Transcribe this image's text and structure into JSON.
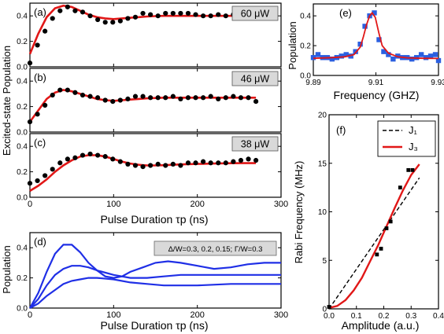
{
  "chart_data": [
    {
      "panel": "(a)",
      "type": "scatter",
      "power_label": "60 μW",
      "xlim": [
        0,
        300
      ],
      "ylim": [
        0,
        0.5
      ],
      "xticks": [
        0,
        100,
        200,
        300
      ],
      "yticks": [
        "0.0",
        "0.2",
        "0.4"
      ],
      "points": [
        [
          0,
          0.03
        ],
        [
          9,
          0.17
        ],
        [
          18,
          0.28
        ],
        [
          27,
          0.38
        ],
        [
          36,
          0.44
        ],
        [
          45,
          0.47
        ],
        [
          54,
          0.44
        ],
        [
          63,
          0.43
        ],
        [
          72,
          0.4
        ],
        [
          81,
          0.37
        ],
        [
          90,
          0.35
        ],
        [
          99,
          0.35
        ],
        [
          108,
          0.36
        ],
        [
          117,
          0.38
        ],
        [
          126,
          0.39
        ],
        [
          135,
          0.42
        ],
        [
          144,
          0.41
        ],
        [
          153,
          0.4
        ],
        [
          162,
          0.42
        ],
        [
          171,
          0.42
        ],
        [
          180,
          0.42
        ],
        [
          189,
          0.42
        ],
        [
          198,
          0.41
        ],
        [
          207,
          0.4
        ],
        [
          216,
          0.4
        ],
        [
          225,
          0.41
        ],
        [
          234,
          0.4
        ],
        [
          243,
          0.41
        ],
        [
          252,
          0.41
        ],
        [
          261,
          0.4
        ],
        [
          270,
          0.39
        ]
      ],
      "fit": [
        [
          0,
          0.1
        ],
        [
          10,
          0.26
        ],
        [
          20,
          0.39
        ],
        [
          30,
          0.46
        ],
        [
          40,
          0.48
        ],
        [
          50,
          0.47
        ],
        [
          60,
          0.44
        ],
        [
          70,
          0.41
        ],
        [
          80,
          0.39
        ],
        [
          90,
          0.38
        ],
        [
          100,
          0.375
        ],
        [
          110,
          0.38
        ],
        [
          120,
          0.385
        ],
        [
          130,
          0.39
        ],
        [
          140,
          0.395
        ],
        [
          150,
          0.398
        ],
        [
          160,
          0.4
        ],
        [
          180,
          0.4
        ],
        [
          200,
          0.4
        ],
        [
          220,
          0.4
        ],
        [
          240,
          0.4
        ],
        [
          255,
          0.4
        ],
        [
          270,
          0.4
        ]
      ]
    },
    {
      "panel": "(b)",
      "type": "scatter",
      "power_label": "46 μW",
      "xlim": [
        0,
        300
      ],
      "ylim": [
        0,
        0.5
      ],
      "xticks": [
        0,
        100,
        200,
        300
      ],
      "yticks": [
        "0.0",
        "0.2",
        "0.4"
      ],
      "points": [
        [
          0,
          0.08
        ],
        [
          9,
          0.14
        ],
        [
          18,
          0.21
        ],
        [
          27,
          0.29
        ],
        [
          36,
          0.33
        ],
        [
          45,
          0.33
        ],
        [
          54,
          0.31
        ],
        [
          63,
          0.29
        ],
        [
          72,
          0.28
        ],
        [
          81,
          0.27
        ],
        [
          90,
          0.25
        ],
        [
          99,
          0.24
        ],
        [
          108,
          0.25
        ],
        [
          117,
          0.26
        ],
        [
          126,
          0.28
        ],
        [
          135,
          0.28
        ],
        [
          144,
          0.27
        ],
        [
          153,
          0.27
        ],
        [
          162,
          0.27
        ],
        [
          171,
          0.28
        ],
        [
          180,
          0.26
        ],
        [
          189,
          0.27
        ],
        [
          198,
          0.27
        ],
        [
          207,
          0.27
        ],
        [
          216,
          0.28
        ],
        [
          225,
          0.26
        ],
        [
          234,
          0.27
        ],
        [
          243,
          0.28
        ],
        [
          252,
          0.27
        ],
        [
          261,
          0.27
        ],
        [
          270,
          0.24
        ]
      ],
      "fit": [
        [
          0,
          0.08
        ],
        [
          10,
          0.17
        ],
        [
          20,
          0.26
        ],
        [
          30,
          0.31
        ],
        [
          40,
          0.33
        ],
        [
          50,
          0.32
        ],
        [
          60,
          0.3
        ],
        [
          70,
          0.28
        ],
        [
          80,
          0.26
        ],
        [
          90,
          0.25
        ],
        [
          100,
          0.245
        ],
        [
          110,
          0.25
        ],
        [
          120,
          0.255
        ],
        [
          130,
          0.26
        ],
        [
          140,
          0.265
        ],
        [
          160,
          0.27
        ],
        [
          180,
          0.27
        ],
        [
          200,
          0.27
        ],
        [
          220,
          0.27
        ],
        [
          240,
          0.27
        ],
        [
          255,
          0.27
        ],
        [
          270,
          0.27
        ]
      ]
    },
    {
      "panel": "(c)",
      "type": "scatter",
      "power_label": "38 μW",
      "xlim": [
        0,
        300
      ],
      "ylim": [
        0,
        0.5
      ],
      "xticks": [
        0,
        100,
        200,
        300
      ],
      "yticks": [
        "0.0",
        "0.2",
        "0.4"
      ],
      "points": [
        [
          0,
          0.11
        ],
        [
          9,
          0.13
        ],
        [
          18,
          0.17
        ],
        [
          27,
          0.22
        ],
        [
          36,
          0.27
        ],
        [
          45,
          0.3
        ],
        [
          54,
          0.31
        ],
        [
          63,
          0.33
        ],
        [
          72,
          0.34
        ],
        [
          81,
          0.33
        ],
        [
          90,
          0.32
        ],
        [
          99,
          0.3
        ],
        [
          108,
          0.28
        ],
        [
          117,
          0.26
        ],
        [
          126,
          0.25
        ],
        [
          135,
          0.24
        ],
        [
          144,
          0.25
        ],
        [
          153,
          0.26
        ],
        [
          162,
          0.25
        ],
        [
          171,
          0.26
        ],
        [
          180,
          0.25
        ],
        [
          189,
          0.27
        ],
        [
          198,
          0.27
        ],
        [
          207,
          0.28
        ],
        [
          216,
          0.27
        ],
        [
          225,
          0.27
        ],
        [
          234,
          0.27
        ],
        [
          243,
          0.28
        ],
        [
          252,
          0.29
        ],
        [
          261,
          0.3
        ],
        [
          270,
          0.29
        ]
      ],
      "fit": [
        [
          0,
          0.05
        ],
        [
          10,
          0.09
        ],
        [
          20,
          0.14
        ],
        [
          30,
          0.2
        ],
        [
          40,
          0.25
        ],
        [
          50,
          0.29
        ],
        [
          60,
          0.32
        ],
        [
          70,
          0.33
        ],
        [
          80,
          0.33
        ],
        [
          90,
          0.32
        ],
        [
          100,
          0.3
        ],
        [
          110,
          0.28
        ],
        [
          120,
          0.265
        ],
        [
          130,
          0.255
        ],
        [
          140,
          0.25
        ],
        [
          150,
          0.25
        ],
        [
          160,
          0.252
        ],
        [
          180,
          0.258
        ],
        [
          200,
          0.262
        ],
        [
          220,
          0.265
        ],
        [
          240,
          0.267
        ],
        [
          255,
          0.268
        ],
        [
          270,
          0.268
        ]
      ]
    },
    {
      "panel": "(d)",
      "type": "line",
      "xlabel": "Pulse Duration τp (ns)",
      "ylabel": "Population",
      "annotation": "Δ/W=0.3, 0.2, 0.15; Γ/W=0.3",
      "xlim": [
        0,
        300
      ],
      "ylim": [
        0,
        0.5
      ],
      "xticks": [
        0,
        100,
        200,
        300
      ],
      "yticks": [
        "0.0",
        "0.2",
        "0.4"
      ],
      "series": [
        {
          "values": [
            [
              0,
              0
            ],
            [
              10,
              0.1
            ],
            [
              20,
              0.24
            ],
            [
              30,
              0.36
            ],
            [
              40,
              0.42
            ],
            [
              50,
              0.42
            ],
            [
              60,
              0.37
            ],
            [
              70,
              0.3
            ],
            [
              80,
              0.25
            ],
            [
              90,
              0.21
            ],
            [
              100,
              0.2
            ],
            [
              110,
              0.21
            ],
            [
              120,
              0.24
            ],
            [
              135,
              0.27
            ],
            [
              150,
              0.3
            ],
            [
              165,
              0.31
            ],
            [
              180,
              0.3
            ],
            [
              200,
              0.28
            ],
            [
              220,
              0.26
            ],
            [
              240,
              0.27
            ],
            [
              260,
              0.29
            ],
            [
              280,
              0.3
            ],
            [
              300,
              0.3
            ]
          ]
        },
        {
          "values": [
            [
              0,
              0
            ],
            [
              10,
              0.06
            ],
            [
              20,
              0.15
            ],
            [
              30,
              0.22
            ],
            [
              40,
              0.26
            ],
            [
              50,
              0.28
            ],
            [
              60,
              0.28
            ],
            [
              70,
              0.27
            ],
            [
              80,
              0.25
            ],
            [
              100,
              0.22
            ],
            [
              120,
              0.2
            ],
            [
              140,
              0.2
            ],
            [
              160,
              0.21
            ],
            [
              180,
              0.22
            ],
            [
              200,
              0.22
            ],
            [
              230,
              0.22
            ],
            [
              260,
              0.22
            ],
            [
              300,
              0.22
            ]
          ]
        },
        {
          "values": [
            [
              0,
              0
            ],
            [
              10,
              0.03
            ],
            [
              20,
              0.08
            ],
            [
              30,
              0.12
            ],
            [
              40,
              0.16
            ],
            [
              50,
              0.18
            ],
            [
              60,
              0.19
            ],
            [
              70,
              0.2
            ],
            [
              80,
              0.2
            ],
            [
              100,
              0.19
            ],
            [
              120,
              0.17
            ],
            [
              140,
              0.16
            ],
            [
              160,
              0.15
            ],
            [
              180,
              0.15
            ],
            [
              200,
              0.15
            ],
            [
              240,
              0.16
            ],
            [
              270,
              0.16
            ],
            [
              300,
              0.16
            ]
          ]
        }
      ]
    },
    {
      "panel": "(e)",
      "type": "scatter",
      "xlabel": "Frequency (GHZ)",
      "ylabel": "Population",
      "xlim": [
        9.89,
        9.93
      ],
      "ylim": [
        0,
        0.48
      ],
      "xticks": [
        "9.89",
        "9.91",
        "9.93"
      ],
      "yticks": [
        "0.0",
        "0.2",
        "0.4"
      ],
      "points": [
        [
          9.89,
          0.12
        ],
        [
          9.8915,
          0.14
        ],
        [
          9.893,
          0.12
        ],
        [
          9.8945,
          0.12
        ],
        [
          9.896,
          0.11
        ],
        [
          9.8975,
          0.12
        ],
        [
          9.899,
          0.13
        ],
        [
          9.9005,
          0.14
        ],
        [
          9.902,
          0.13
        ],
        [
          9.9035,
          0.16
        ],
        [
          9.905,
          0.21
        ],
        [
          9.9065,
          0.33
        ],
        [
          9.908,
          0.4
        ],
        [
          9.9095,
          0.42
        ],
        [
          9.911,
          0.24
        ],
        [
          9.9125,
          0.16
        ],
        [
          9.914,
          0.14
        ],
        [
          9.9155,
          0.11
        ],
        [
          9.917,
          0.13
        ],
        [
          9.9185,
          0.12
        ],
        [
          9.92,
          0.12
        ],
        [
          9.9215,
          0.11
        ],
        [
          9.923,
          0.12
        ],
        [
          9.9245,
          0.14
        ],
        [
          9.926,
          0.12
        ],
        [
          9.9275,
          0.13
        ],
        [
          9.929,
          0.14
        ],
        [
          9.93,
          0.1
        ]
      ],
      "fit": [
        [
          9.89,
          0.115
        ],
        [
          9.896,
          0.12
        ],
        [
          9.9,
          0.125
        ],
        [
          9.903,
          0.14
        ],
        [
          9.905,
          0.19
        ],
        [
          9.906,
          0.26
        ],
        [
          9.907,
          0.34
        ],
        [
          9.908,
          0.4
        ],
        [
          9.9088,
          0.42
        ],
        [
          9.9098,
          0.39
        ],
        [
          9.911,
          0.28
        ],
        [
          9.912,
          0.2
        ],
        [
          9.914,
          0.15
        ],
        [
          9.917,
          0.125
        ],
        [
          9.92,
          0.118
        ],
        [
          9.925,
          0.115
        ],
        [
          9.93,
          0.114
        ]
      ]
    },
    {
      "panel": "(f)",
      "type": "line",
      "xlabel": "Amplitude (a.u.)",
      "ylabel": "Rabi Frequency (MHz)",
      "xlim": [
        0,
        0.4
      ],
      "ylim": [
        0,
        20
      ],
      "xticks": [
        "0.0",
        "0.1",
        "0.2",
        "0.3",
        "0.4"
      ],
      "yticks": [
        "0",
        "5",
        "10",
        "15",
        "20"
      ],
      "legend": [
        "J₁",
        "J₃"
      ],
      "points": [
        [
          0,
          0.2
        ],
        [
          0.175,
          5.6
        ],
        [
          0.19,
          6.2
        ],
        [
          0.21,
          8.3
        ],
        [
          0.225,
          9.0
        ],
        [
          0.26,
          12.5
        ],
        [
          0.29,
          14.3
        ],
        [
          0.305,
          14.3
        ]
      ],
      "series": [
        {
          "name": "J₁",
          "style": "dashed",
          "color": "#000000",
          "values": [
            [
              0,
              0
            ],
            [
              0.33,
              13.5
            ]
          ]
        },
        {
          "name": "J₃",
          "style": "solid",
          "color": "#dd1111",
          "values": [
            [
              0,
              0.1
            ],
            [
              0.03,
              0.3
            ],
            [
              0.06,
              0.9
            ],
            [
              0.09,
              1.9
            ],
            [
              0.12,
              3.2
            ],
            [
              0.15,
              4.9
            ],
            [
              0.18,
              6.6
            ],
            [
              0.21,
              8.5
            ],
            [
              0.24,
              10.4
            ],
            [
              0.27,
              12.2
            ],
            [
              0.3,
              13.8
            ],
            [
              0.33,
              14.9
            ]
          ]
        }
      ]
    }
  ],
  "shared": {
    "ylabel_abc": "Excited-state Population",
    "xlabel_abc": "Pulse Duration τp (ns)"
  },
  "colors": {
    "red": "#e11717",
    "blue": "#1f2fe6",
    "square": "#2b5fe0",
    "box": "#d9d9d9"
  }
}
